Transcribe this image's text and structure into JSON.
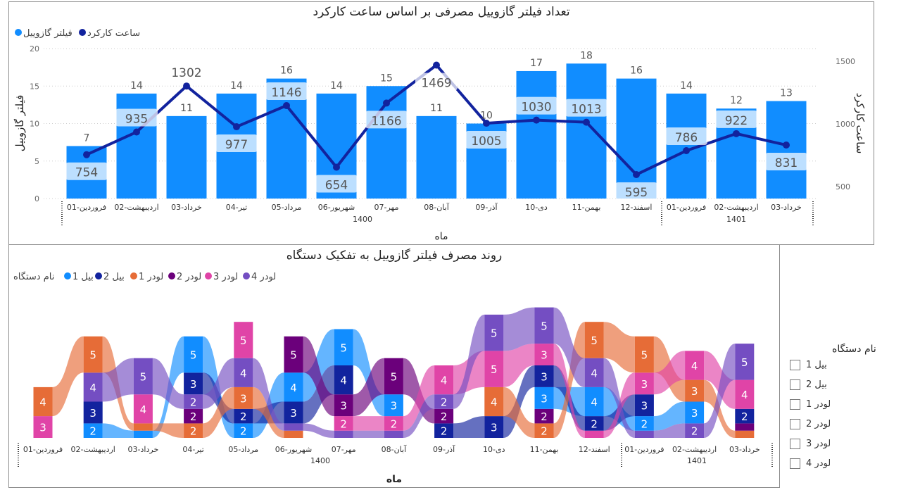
{
  "top_chart": {
    "title": "تعداد فیلتر گازوییل مصرفی بر اساس ساعت کارکرد",
    "legend": [
      {
        "label": "فیلتر گازوییل",
        "color": "#118DFF"
      },
      {
        "label": "ساعت کارکرد",
        "color": "#12239E"
      }
    ],
    "y_axis_title": "فیلتر گازوییل",
    "y2_axis_title": "ساعت کارکرد",
    "x_axis_title": "ماه",
    "y_ticks": [
      "0",
      "5",
      "10",
      "15",
      "20"
    ],
    "y2_ticks": [
      "500",
      "1000",
      "1500"
    ],
    "year_labels": [
      "1400",
      "1401"
    ]
  },
  "chart_data": [
    {
      "type": "bar+line",
      "title": "تعداد فیلتر گازوییل مصرفی بر اساس ساعت کارکرد",
      "xlabel": "ماه",
      "ylabel": "فیلتر گازوییل",
      "y2label": "ساعت کارکرد",
      "ylim": [
        0,
        20
      ],
      "y2lim": [
        404,
        1601
      ],
      "categories": [
        "فروردین-01",
        "اردیبهشت-02",
        "خرداد-03",
        "تیر-04",
        "مرداد-05",
        "شهریور-06",
        "مهر-07",
        "آبان-08",
        "آذر-09",
        "دی-10",
        "بهمن-11",
        "اسفند-12",
        "فروردین-01",
        "اردیبهشت-02",
        "خرداد-03"
      ],
      "years": [
        {
          "label": "1400",
          "count": 12
        },
        {
          "label": "1401",
          "count": 3
        }
      ],
      "series": [
        {
          "name": "فیلتر گازوییل",
          "type": "bar",
          "color": "#118DFF",
          "values": [
            7,
            14,
            11,
            14,
            16,
            14,
            15,
            11,
            10,
            17,
            18,
            16,
            14,
            12,
            13
          ]
        },
        {
          "name": "ساعت کارکرد",
          "type": "line",
          "color": "#12239E",
          "axis": "y2",
          "values": [
            754,
            935,
            1302,
            977,
            1146,
            654,
            1166,
            1469,
            1005,
            1030,
            1013,
            595,
            786,
            922,
            831
          ]
        }
      ]
    },
    {
      "type": "ribbon",
      "title": "روند مصرف فیلتر گازوییل به تفکیک دستگاه",
      "xlabel": "ماه",
      "categories": [
        "فروردین-01",
        "اردیبهشت-02",
        "خرداد-03",
        "تیر-04",
        "مرداد-05",
        "شهریور-06",
        "مهر-07",
        "آبان-08",
        "آذر-09",
        "دی-10",
        "بهمن-11",
        "اسفند-12",
        "فروردین-01",
        "اردیبهشت-02",
        "خرداد-03"
      ],
      "years": [
        {
          "label": "1400",
          "count": 12
        },
        {
          "label": "1401",
          "count": 3
        }
      ],
      "devices": [
        {
          "name": "بیل 1",
          "color": "#118DFF"
        },
        {
          "name": "بیل 2",
          "color": "#12239E"
        },
        {
          "name": "لودر 1",
          "color": "#E66C37"
        },
        {
          "name": "لودر 2",
          "color": "#6B007B"
        },
        {
          "name": "لودر 3",
          "color": "#E044A7"
        },
        {
          "name": "لودر 4",
          "color": "#744EC2"
        }
      ],
      "stacks": [
        [
          [
            "لودر 3",
            3
          ],
          [
            "لودر 1",
            4
          ]
        ],
        [
          [
            "بیل 1",
            2
          ],
          [
            "بیل 2",
            3
          ],
          [
            "لودر 4",
            4
          ],
          [
            "لودر 1",
            5
          ]
        ],
        [
          [
            "بیل 1",
            1
          ],
          [
            "لودر 1",
            1
          ],
          [
            "لودر 3",
            4
          ],
          [
            "لودر 4",
            5
          ]
        ],
        [
          [
            "لودر 1",
            2
          ],
          [
            "لودر 2",
            2
          ],
          [
            "لودر 4",
            2
          ],
          [
            "بیل 2",
            3
          ],
          [
            "بیل 1",
            5
          ]
        ],
        [
          [
            "بیل 1",
            2
          ],
          [
            "بیل 2",
            2
          ],
          [
            "لودر 1",
            3
          ],
          [
            "لودر 4",
            4
          ],
          [
            "لودر 3",
            5
          ]
        ],
        [
          [
            "لودر 1",
            1
          ],
          [
            "لودر 4",
            1
          ],
          [
            "بیل 2",
            3
          ],
          [
            "بیل 1",
            4
          ],
          [
            "لودر 2",
            5
          ]
        ],
        [
          [
            "لودر 4",
            1
          ],
          [
            "لودر 3",
            2
          ],
          [
            "لودر 2",
            3
          ],
          [
            "بیل 2",
            4
          ],
          [
            "بیل 1",
            5
          ]
        ],
        [
          [
            "لودر 4",
            1
          ],
          [
            "لودر 3",
            2
          ],
          [
            "بیل 1",
            3
          ],
          [
            "لودر 2",
            5
          ]
        ],
        [
          [
            "بیل 2",
            2
          ],
          [
            "لودر 2",
            2
          ],
          [
            "لودر 4",
            2
          ],
          [
            "لودر 3",
            4
          ]
        ],
        [
          [
            "بیل 2",
            3
          ],
          [
            "لودر 1",
            4
          ],
          [
            "لودر 3",
            5
          ],
          [
            "لودر 4",
            5
          ]
        ],
        [
          [
            "لودر 1",
            2
          ],
          [
            "لودر 2",
            2
          ],
          [
            "بیل 1",
            3
          ],
          [
            "بیل 2",
            3
          ],
          [
            "لودر 3",
            3
          ],
          [
            "لودر 4",
            5
          ]
        ],
        [
          [
            "لودر 3",
            1
          ],
          [
            "بیل 2",
            2
          ],
          [
            "بیل 1",
            4
          ],
          [
            "لودر 4",
            4
          ],
          [
            "لودر 1",
            5
          ]
        ],
        [
          [
            "لودر 4",
            1
          ],
          [
            "بیل 1",
            2
          ],
          [
            "بیل 2",
            3
          ],
          [
            "لودر 3",
            3
          ],
          [
            "لودر 1",
            5
          ]
        ],
        [
          [
            "لودر 4",
            2
          ],
          [
            "بیل 1",
            3
          ],
          [
            "لودر 1",
            3
          ],
          [
            "لودر 3",
            4
          ]
        ],
        [
          [
            "لودر 1",
            1
          ],
          [
            "لودر 2",
            1
          ],
          [
            "بیل 2",
            2
          ],
          [
            "لودر 3",
            4
          ],
          [
            "لودر 4",
            5
          ]
        ]
      ]
    }
  ],
  "bottom_chart": {
    "title": "روند مصرف فیلتر گازوییل به تفکیک دستگاه",
    "legend_title": "نام دستگاه",
    "x_axis_title": "ماه",
    "year_labels": [
      "1400",
      "1401"
    ]
  },
  "slicer": {
    "title": "نام دستگاه",
    "items": [
      "بیل 1",
      "بیل 2",
      "لودر 1",
      "لودر 2",
      "لودر 3",
      "لودر 4"
    ]
  }
}
